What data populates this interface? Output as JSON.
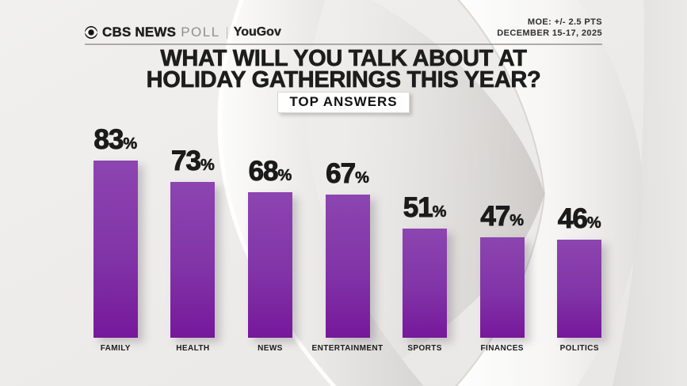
{
  "header": {
    "logo": {
      "cbs_news": "CBS NEWS",
      "poll": "POLL",
      "partner": "YouGov"
    },
    "moe": "MOE: +/- 2.5 PTS",
    "date_range": "DECEMBER 15-17, 2025"
  },
  "title": {
    "line1": "WHAT WILL YOU TALK ABOUT AT",
    "line2": "HOLIDAY GATHERINGS THIS YEAR?",
    "badge": "TOP ANSWERS"
  },
  "chart_data": {
    "type": "bar",
    "title": "WHAT WILL YOU TALK ABOUT AT HOLIDAY GATHERINGS THIS YEAR?",
    "subtitle": "TOP ANSWERS",
    "categories": [
      "FAMILY",
      "HEALTH",
      "NEWS",
      "ENTERTAINMENT",
      "SPORTS",
      "FINANCES",
      "POLITICS"
    ],
    "values": [
      83,
      73,
      68,
      67,
      51,
      47,
      46
    ],
    "unit": "%",
    "xlabel": "",
    "ylabel": "",
    "ylim": [
      0,
      100
    ],
    "grid": false,
    "legend": "none",
    "value_labels": "above bars",
    "bar_colors": {
      "top": "#8c45b0",
      "bottom": "#76189b"
    }
  },
  "colors": {
    "background": "#eeedeb",
    "text": "#1d1d1d",
    "accent_purple": "#8233a6",
    "logo_gray": "#8f8f8f"
  }
}
